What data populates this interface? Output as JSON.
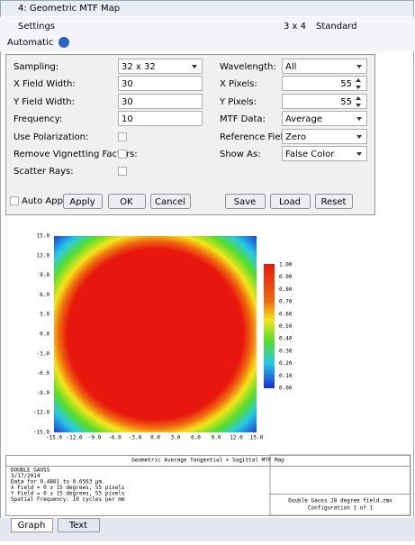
{
  "window": {
    "title": "4: Geometric MTF Map"
  },
  "toolbar": {
    "settings": "Settings",
    "layout": "3 x 4",
    "style": "Standard",
    "update": "Automatic"
  },
  "settings": {
    "left": [
      {
        "label": "Sampling:",
        "value": "32 x 32"
      },
      {
        "label": "X Field Width:",
        "value": "30"
      },
      {
        "label": "Y Field Width:",
        "value": "30"
      },
      {
        "label": "Frequency:",
        "value": "10"
      },
      {
        "label": "Use Polarization:"
      },
      {
        "label": "Remove Vignetting Factors:"
      },
      {
        "label": "Scatter Rays:"
      }
    ],
    "right": [
      {
        "label": "Wavelength:",
        "value": "All"
      },
      {
        "label": "X Pixels:",
        "value": "55"
      },
      {
        "label": "Y Pixels:",
        "value": "55"
      },
      {
        "label": "MTF Data:",
        "value": "Average"
      },
      {
        "label": "Reference Field:",
        "value": "Zero"
      },
      {
        "label": "Show As:",
        "value": "False Color"
      }
    ],
    "buttons": {
      "auto_apply": "Auto Apply",
      "apply": "Apply",
      "ok": "OK",
      "cancel": "Cancel",
      "save": "Save",
      "load": "Load",
      "reset": "Reset"
    }
  },
  "plot": {
    "y_ticks": [
      "15.0",
      "12.0",
      "9.0",
      "6.0",
      "3.0",
      "0.0",
      "-3.0",
      "-6.0",
      "-9.0",
      "-12.0",
      "-15.0"
    ],
    "x_ticks": [
      "-15.0",
      "-12.0",
      "-9.0",
      "-6.0",
      "-3.0",
      "0.0",
      "3.0",
      "6.0",
      "9.0",
      "12.0",
      "15.0"
    ],
    "colorbar_ticks": [
      "1.00",
      "0.90",
      "0.80",
      "0.70",
      "0.60",
      "0.50",
      "0.40",
      "0.30",
      "0.20",
      "0.10",
      "0.00"
    ]
  },
  "footer": {
    "title": "Geometric Average Tangential + Sagittal MTF Map",
    "info": [
      "DOUBLE GAUSS",
      "3/17/2014",
      "Data for 0.4861 to 0.6563 µm.",
      "X Field = 0 ± 15 degrees, 55 pixels",
      "Y Field = 0 ± 15 degrees, 55 pixels",
      "Spatial Frequency: 10 cycles per mm"
    ],
    "file": "Double Gauss 28 degree field.zmx",
    "config": "Configuration 1 of 1"
  },
  "tabs": [
    "Graph",
    "Text"
  ]
}
